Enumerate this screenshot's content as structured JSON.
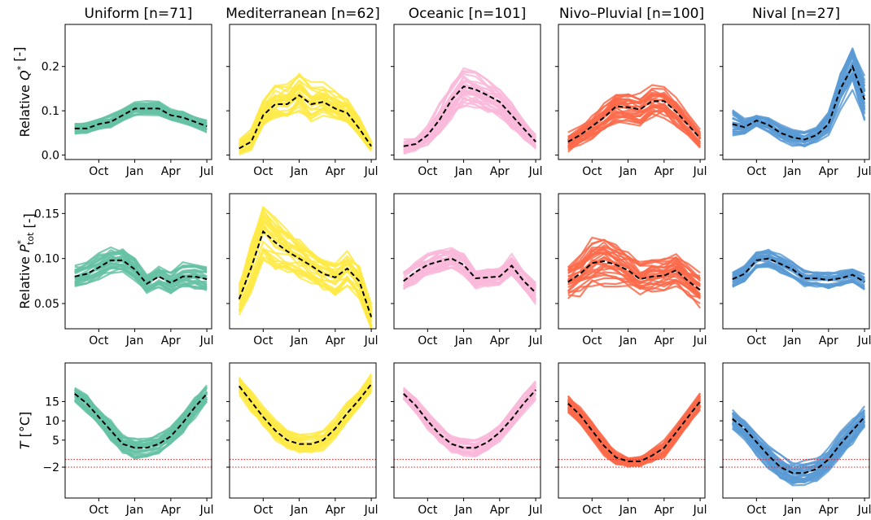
{
  "figure": {
    "columns": [
      {
        "title": "Uniform [n=71]",
        "color": "#66c2a5"
      },
      {
        "title": "Mediterranean [n=62]",
        "color": "#ffea46"
      },
      {
        "title": "Oceanic [n=101]",
        "color": "#f9b9d9"
      },
      {
        "title": "Nivo–Pluvial [n=100]",
        "color": "#fb6a4a"
      },
      {
        "title": "Nival [n=27]",
        "color": "#5b9bd5"
      }
    ],
    "row_labels": [
      {
        "prefix": "Relative ",
        "symbol": "Q",
        "sup": "*",
        "suffix": " [-]"
      },
      {
        "prefix": "Relative ",
        "symbol": "P",
        "sup": "*",
        "sub": "tot",
        "suffix": " [-]"
      },
      {
        "prefix": "",
        "symbol": "T",
        "suffix": " [°C]"
      }
    ],
    "median_style": "dashed-black",
    "threshold_color": "#e41a1c"
  },
  "chart_data": [
    {
      "type": "line",
      "row": 0,
      "variable": "Relative Q*",
      "x": [
        0,
        1,
        2,
        3,
        4,
        5,
        6,
        7,
        8,
        9,
        10,
        11
      ],
      "xticks": {
        "positions": [
          2,
          5,
          8,
          11
        ],
        "labels": [
          "Oct",
          "Jan",
          "Apr",
          "Jul"
        ]
      },
      "yticks": [
        0.0,
        0.1,
        0.2
      ],
      "ytick_labels": [
        "0.0",
        "0.1",
        "0.2"
      ],
      "ylim": [
        -0.01,
        0.295
      ],
      "panels": [
        {
          "region": "Uniform",
          "median": [
            0.06,
            0.06,
            0.07,
            0.075,
            0.09,
            0.105,
            0.105,
            0.105,
            0.09,
            0.085,
            0.075,
            0.065
          ],
          "spread": [
            0.013,
            0.015,
            0.015,
            0.017,
            0.017,
            0.017,
            0.017,
            0.017,
            0.015,
            0.015,
            0.015,
            0.015
          ]
        },
        {
          "region": "Mediterranean",
          "median": [
            0.015,
            0.03,
            0.09,
            0.115,
            0.115,
            0.135,
            0.115,
            0.12,
            0.105,
            0.095,
            0.06,
            0.02
          ],
          "spread": [
            0.02,
            0.03,
            0.045,
            0.045,
            0.05,
            0.055,
            0.05,
            0.045,
            0.04,
            0.035,
            0.025,
            0.015
          ]
        },
        {
          "region": "Oceanic",
          "median": [
            0.02,
            0.025,
            0.045,
            0.08,
            0.125,
            0.155,
            0.148,
            0.135,
            0.12,
            0.09,
            0.06,
            0.03
          ],
          "spread": [
            0.02,
            0.02,
            0.025,
            0.04,
            0.05,
            0.055,
            0.05,
            0.045,
            0.04,
            0.035,
            0.025,
            0.02
          ]
        },
        {
          "region": "Nivo–Pluvial",
          "median": [
            0.03,
            0.045,
            0.065,
            0.085,
            0.11,
            0.108,
            0.103,
            0.122,
            0.122,
            0.098,
            0.068,
            0.038
          ],
          "spread": [
            0.025,
            0.025,
            0.03,
            0.035,
            0.04,
            0.04,
            0.04,
            0.04,
            0.04,
            0.035,
            0.03,
            0.025
          ]
        },
        {
          "region": "Nival",
          "median": [
            0.07,
            0.063,
            0.078,
            0.068,
            0.05,
            0.04,
            0.035,
            0.045,
            0.07,
            0.15,
            0.2,
            0.125
          ],
          "spread": [
            0.035,
            0.02,
            0.015,
            0.02,
            0.02,
            0.02,
            0.02,
            0.02,
            0.03,
            0.05,
            0.06,
            0.06
          ]
        }
      ]
    },
    {
      "type": "line",
      "row": 1,
      "variable": "Relative P*tot",
      "x": [
        0,
        1,
        2,
        3,
        4,
        5,
        6,
        7,
        8,
        9,
        10,
        11
      ],
      "xticks": {
        "positions": [
          2,
          5,
          8,
          11
        ],
        "labels": [
          "Oct",
          "Jan",
          "Apr",
          "Jul"
        ]
      },
      "yticks": [
        0.05,
        0.1,
        0.15
      ],
      "ytick_labels": [
        "0.05",
        "0.10",
        "0.15"
      ],
      "ylim": [
        0.022,
        0.172
      ],
      "panels": [
        {
          "region": "Uniform",
          "median": [
            0.08,
            0.083,
            0.09,
            0.098,
            0.098,
            0.088,
            0.072,
            0.08,
            0.073,
            0.08,
            0.08,
            0.077
          ],
          "spread": [
            0.015,
            0.015,
            0.017,
            0.017,
            0.017,
            0.015,
            0.013,
            0.015,
            0.015,
            0.017,
            0.017,
            0.017
          ]
        },
        {
          "region": "Mediterranean",
          "median": [
            0.055,
            0.09,
            0.13,
            0.118,
            0.108,
            0.1,
            0.092,
            0.083,
            0.079,
            0.089,
            0.075,
            0.035
          ],
          "spread": [
            0.02,
            0.03,
            0.035,
            0.03,
            0.025,
            0.022,
            0.02,
            0.02,
            0.02,
            0.02,
            0.02,
            0.015
          ]
        },
        {
          "region": "Oceanic",
          "median": [
            0.075,
            0.085,
            0.093,
            0.097,
            0.1,
            0.093,
            0.078,
            0.079,
            0.08,
            0.092,
            0.075,
            0.062
          ],
          "spread": [
            0.015,
            0.015,
            0.015,
            0.015,
            0.015,
            0.015,
            0.013,
            0.013,
            0.013,
            0.015,
            0.015,
            0.015
          ]
        },
        {
          "region": "Nivo–Pluvial",
          "median": [
            0.074,
            0.083,
            0.095,
            0.097,
            0.093,
            0.087,
            0.077,
            0.08,
            0.081,
            0.087,
            0.075,
            0.065
          ],
          "spread": [
            0.02,
            0.025,
            0.03,
            0.028,
            0.025,
            0.022,
            0.02,
            0.02,
            0.02,
            0.02,
            0.02,
            0.02
          ]
        },
        {
          "region": "Nival",
          "median": [
            0.077,
            0.083,
            0.098,
            0.1,
            0.094,
            0.088,
            0.078,
            0.078,
            0.076,
            0.078,
            0.082,
            0.074
          ],
          "spread": [
            0.01,
            0.01,
            0.012,
            0.012,
            0.012,
            0.01,
            0.01,
            0.01,
            0.01,
            0.01,
            0.01,
            0.01
          ]
        }
      ]
    },
    {
      "type": "line",
      "row": 2,
      "variable": "T [°C]",
      "x": [
        0,
        1,
        2,
        3,
        4,
        5,
        6,
        7,
        8,
        9,
        10,
        11
      ],
      "xticks": {
        "positions": [
          2,
          5,
          8,
          11
        ],
        "labels": [
          "Oct",
          "Jan",
          "Apr",
          "Jul"
        ]
      },
      "yticks": [
        -2,
        5,
        10,
        15
      ],
      "ytick_labels": [
        "−2",
        "5",
        "10",
        "15"
      ],
      "ylim": [
        -10,
        25
      ],
      "hlines": [
        0,
        -2
      ],
      "panels": [
        {
          "region": "Uniform",
          "median": [
            17,
            14.5,
            11,
            7.5,
            4,
            3,
            3,
            4,
            6,
            9.5,
            13.5,
            17
          ],
          "spread": [
            2.5,
            2.5,
            2.5,
            3,
            3,
            3,
            3,
            3,
            3,
            3,
            3,
            2.5
          ]
        },
        {
          "region": "Mediterranean",
          "median": [
            19,
            15,
            11,
            7.5,
            5,
            4,
            4,
            5,
            8,
            12,
            15.5,
            19.5
          ],
          "spread": [
            3,
            3,
            3,
            3,
            3,
            3,
            3,
            3,
            3,
            3,
            3,
            3
          ]
        },
        {
          "region": "Oceanic",
          "median": [
            17,
            14,
            10,
            6.5,
            4,
            3,
            3,
            4.5,
            7,
            10.5,
            14.5,
            18
          ],
          "spread": [
            2,
            2,
            2.5,
            2.5,
            2.5,
            2.5,
            2.5,
            2.5,
            2.5,
            2.5,
            2.5,
            2.5
          ]
        },
        {
          "region": "Nivo–Pluvial",
          "median": [
            14.5,
            11.5,
            7.5,
            3.5,
            0.5,
            -0.5,
            -0.5,
            1,
            3,
            7,
            11,
            15
          ],
          "spread": [
            2.5,
            2.5,
            2.5,
            2.5,
            2,
            1.5,
            1.5,
            2,
            2.5,
            2.5,
            2.5,
            2.5
          ]
        },
        {
          "region": "Nival",
          "median": [
            10.5,
            8,
            4.5,
            1,
            -2,
            -3.5,
            -3.5,
            -2.5,
            0,
            4,
            7.5,
            11
          ],
          "spread": [
            3,
            3,
            3.5,
            3.5,
            3.5,
            3.5,
            3.5,
            3.5,
            3.5,
            3.5,
            3.5,
            3
          ]
        }
      ]
    }
  ]
}
